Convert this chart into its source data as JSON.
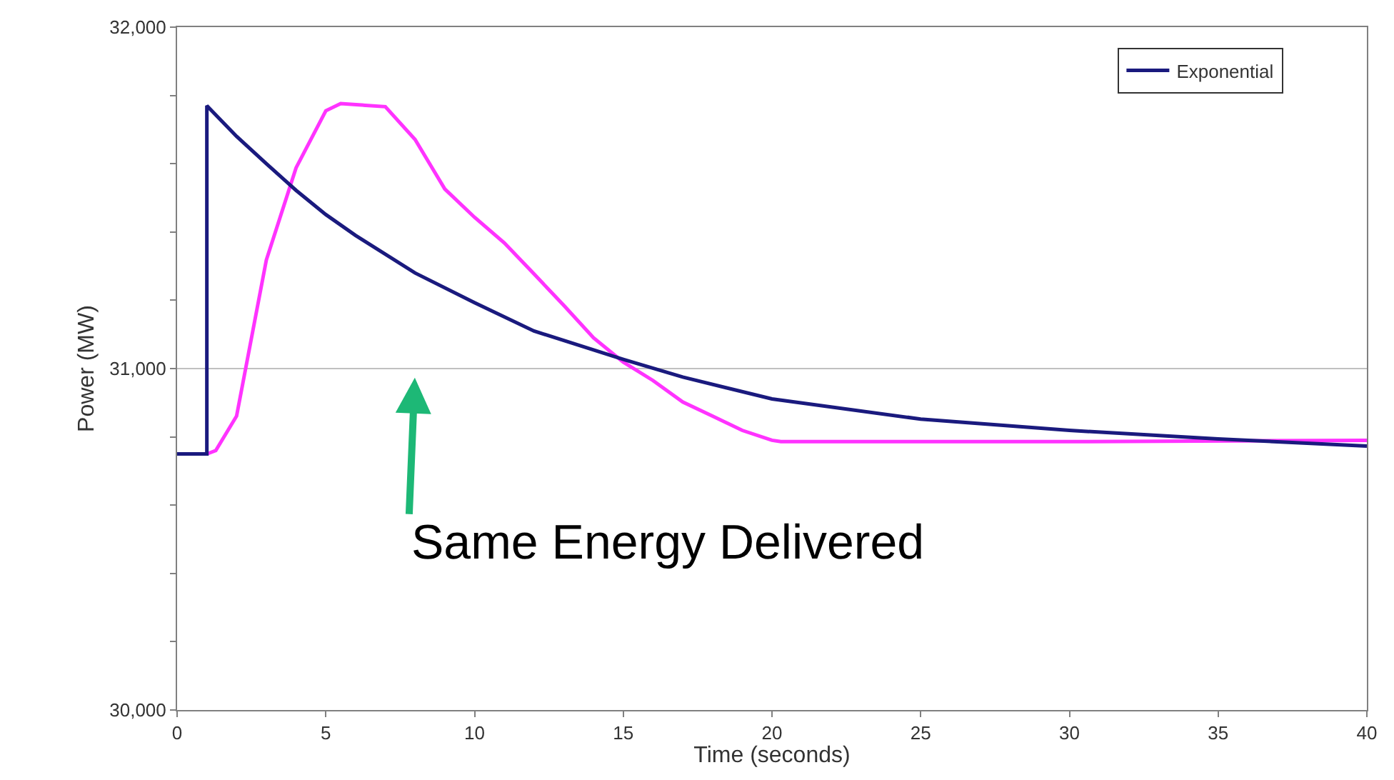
{
  "chart_data": {
    "type": "line",
    "xlabel": "Time (seconds)",
    "ylabel": "Power (MW)",
    "xlim": [
      0,
      40
    ],
    "xticks": [
      0,
      5,
      10,
      15,
      20,
      25,
      30,
      35,
      40
    ],
    "ylim": [
      30000,
      32000
    ],
    "yticks": [
      {
        "value": 30000,
        "label": "30,000"
      },
      {
        "value": 30200,
        "label": null
      },
      {
        "value": 30400,
        "label": null
      },
      {
        "value": 30600,
        "label": null
      },
      {
        "value": 30800,
        "label": null
      },
      {
        "value": 31000,
        "label": "31,000"
      },
      {
        "value": 31200,
        "label": null
      },
      {
        "value": 31400,
        "label": null
      },
      {
        "value": 31600,
        "label": null
      },
      {
        "value": 31800,
        "label": null
      },
      {
        "value": 32000,
        "label": "32,000"
      }
    ],
    "grid": false,
    "legend": "top right",
    "marker": "none",
    "line_style": "solid",
    "ref_lines": [
      {
        "axis": "y",
        "value": 31000,
        "color": "#c0c0c0"
      }
    ],
    "annotations": [
      {
        "text": "Same Energy Delivered",
        "x": 8,
        "y": 30990
      }
    ],
    "series": [
      {
        "color": "#ff33ff",
        "x": [
          1,
          1.3,
          2,
          3,
          4,
          5,
          5.5,
          7,
          8,
          9,
          10,
          11,
          12,
          13,
          14,
          15,
          16,
          17,
          18,
          19,
          20,
          20.3,
          30,
          40
        ],
        "values": [
          30750,
          30760,
          30861,
          31318,
          31588,
          31755,
          31776,
          31767,
          31671,
          31526,
          31443,
          31368,
          31277,
          31185,
          31090,
          31019,
          30965,
          30902,
          30861,
          30819,
          30790,
          30786,
          30786,
          30790
        ]
      },
      {
        "name": "Exponential",
        "color": "#1a1a7e",
        "x": [
          0,
          1,
          1,
          2,
          3,
          4,
          5,
          6,
          7,
          8,
          10,
          12,
          15,
          17,
          20,
          25,
          30,
          35,
          40
        ],
        "values": [
          30750,
          30750,
          31770,
          31680,
          31600,
          31522,
          31451,
          31390,
          31335,
          31280,
          31193,
          31110,
          31027,
          30975,
          30911,
          30852,
          30819,
          30794,
          30773
        ]
      }
    ]
  }
}
